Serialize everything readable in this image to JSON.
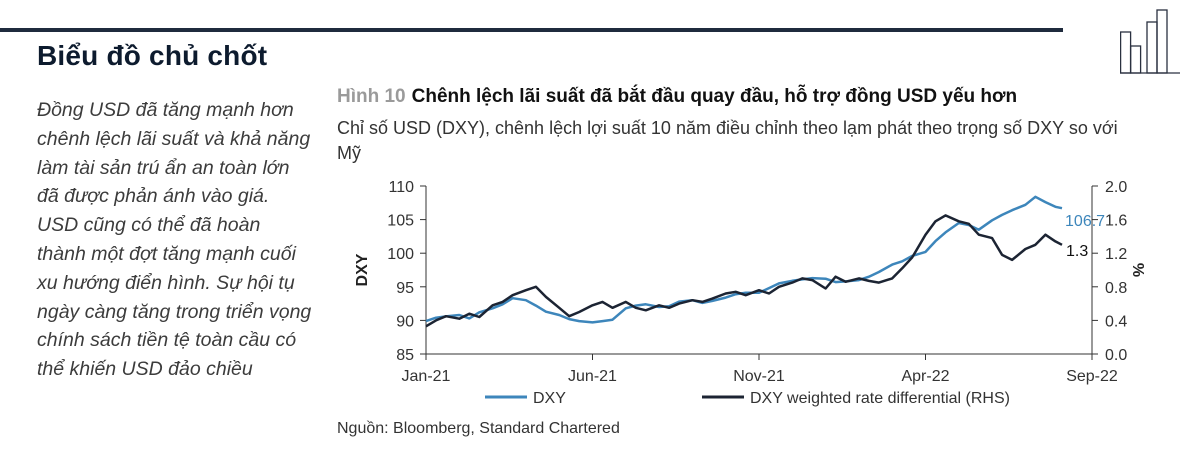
{
  "header": {
    "section_title": "Biểu đồ chủ chốt"
  },
  "commentary": "Đồng USD đã tăng mạnh hơn chênh lệch lãi suất và khả năng làm tài sản trú ẩn an toàn lớn đã được phản ánh vào giá. USD cũng có thể đã hoàn thành một đợt tăng mạnh cuối xu hướng điển hình. Sự hội tụ ngày càng tăng trong triển vọng chính sách tiền tệ toàn cầu có thể khiến USD đảo chiều",
  "figure": {
    "number": "Hình 10",
    "title": "Chênh lệch lãi suất đã bắt đầu quay đầu, hỗ trợ đồng USD yếu hơn",
    "subtitle": "Chỉ số USD (DXY), chênh lệch lợi suất 10 năm điều chỉnh theo lạm phát theo trọng số DXY so với Mỹ",
    "source": "Nguồn: Bloomberg, Standard Chartered"
  },
  "colors": {
    "dxy": "#3d86bb",
    "diff": "#1c2433",
    "axis": "#333333",
    "rule": "#1f2b3d"
  },
  "chart_data": {
    "type": "line",
    "title": "Chênh lệch lãi suất đã bắt đầu quay đầu, hỗ trợ đồng USD yếu hơn",
    "xlabel": "",
    "ylabel": "DXY",
    "ylabel_right": "%",
    "x_ticks": [
      "Jan-21",
      "Jun-21",
      "Nov-21",
      "Apr-22",
      "Sep-22"
    ],
    "x_unit": "months since Jan-21",
    "xlim": [
      0,
      20
    ],
    "ylim": [
      85,
      110
    ],
    "y_ticks": [
      "85",
      "90",
      "95",
      "100",
      "105",
      "110"
    ],
    "ylim_right": [
      0.0,
      2.0
    ],
    "y_ticks_right": [
      "0.0",
      "0.4",
      "0.8",
      "1.2",
      "1.6",
      "2.0"
    ],
    "legend": "bottom",
    "series": [
      {
        "name": "DXY",
        "axis": "left",
        "end_label": "106.7",
        "x": [
          0,
          0.3,
          0.6,
          1,
          1.3,
          1.6,
          2,
          2.3,
          2.6,
          3,
          3.3,
          3.6,
          4,
          4.3,
          4.6,
          5,
          5.3,
          5.6,
          6,
          6.3,
          6.6,
          7,
          7.3,
          7.6,
          8,
          8.3,
          8.6,
          9,
          9.3,
          9.6,
          10,
          10.3,
          10.6,
          11,
          11.3,
          11.6,
          12,
          12.3,
          12.6,
          13,
          13.3,
          13.6,
          14,
          14.3,
          14.6,
          15,
          15.3,
          15.6,
          16,
          16.3,
          16.6,
          17,
          17.3,
          17.6,
          18,
          18.3,
          18.6,
          18.9,
          19.1
        ],
        "values": [
          89.9,
          90.4,
          90.6,
          90.8,
          90.3,
          91.2,
          91.8,
          92.4,
          93.3,
          93.0,
          92.2,
          91.3,
          90.8,
          90.2,
          89.9,
          89.7,
          89.9,
          90.1,
          91.8,
          92.2,
          92.4,
          92.0,
          92.1,
          92.8,
          93.0,
          92.6,
          92.9,
          93.4,
          93.9,
          94.1,
          94.1,
          94.8,
          95.5,
          95.9,
          96.1,
          96.3,
          96.2,
          95.7,
          95.8,
          96.0,
          96.5,
          97.2,
          98.3,
          98.8,
          99.6,
          100.2,
          101.8,
          103.1,
          104.5,
          104.2,
          103.5,
          104.9,
          105.7,
          106.4,
          107.2,
          108.4,
          107.6,
          106.9,
          106.7
        ]
      },
      {
        "name": "DXY weighted rate differential (RHS)",
        "axis": "right",
        "end_label": "1.3",
        "x": [
          0,
          0.3,
          0.6,
          1,
          1.3,
          1.6,
          2,
          2.3,
          2.6,
          3,
          3.3,
          3.6,
          4,
          4.3,
          4.6,
          5,
          5.3,
          5.6,
          6,
          6.3,
          6.6,
          7,
          7.3,
          7.6,
          8,
          8.3,
          8.6,
          9,
          9.3,
          9.6,
          10,
          10.3,
          10.6,
          11,
          11.3,
          11.6,
          12,
          12.3,
          12.6,
          13,
          13.3,
          13.6,
          14,
          14.3,
          14.6,
          15,
          15.3,
          15.6,
          16,
          16.3,
          16.6,
          17,
          17.3,
          17.6,
          18,
          18.3,
          18.6,
          18.9,
          19.1
        ],
        "values": [
          0.33,
          0.4,
          0.45,
          0.42,
          0.48,
          0.44,
          0.58,
          0.62,
          0.7,
          0.76,
          0.8,
          0.68,
          0.55,
          0.45,
          0.5,
          0.58,
          0.62,
          0.55,
          0.62,
          0.55,
          0.52,
          0.58,
          0.55,
          0.6,
          0.64,
          0.62,
          0.66,
          0.72,
          0.74,
          0.7,
          0.76,
          0.72,
          0.8,
          0.85,
          0.9,
          0.88,
          0.78,
          0.92,
          0.86,
          0.9,
          0.87,
          0.85,
          0.9,
          1.02,
          1.15,
          1.42,
          1.58,
          1.65,
          1.58,
          1.55,
          1.42,
          1.38,
          1.18,
          1.12,
          1.25,
          1.3,
          1.42,
          1.34,
          1.3
        ]
      }
    ]
  }
}
